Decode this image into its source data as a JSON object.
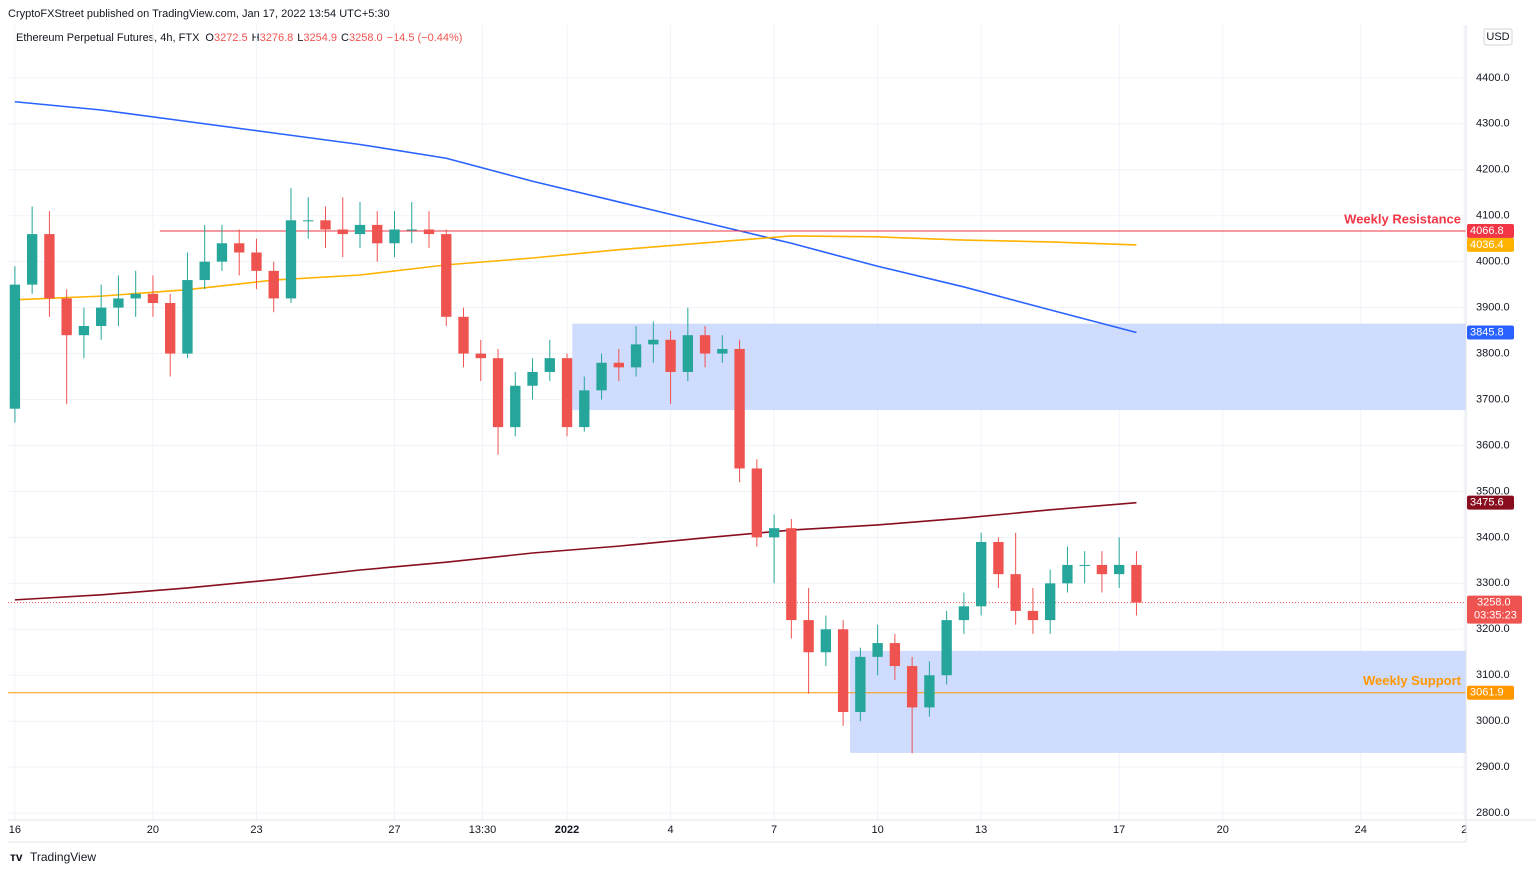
{
  "header": {
    "published": "CryptoFXStreet published on TradingView.com, Jan 17, 2022 13:54 UTC+5:30",
    "symbol": "Ethereum Perpetual Futures, 4h, FTX",
    "ohlc": [
      {
        "key": "O",
        "value": "3272.5"
      },
      {
        "key": "H",
        "value": "3276.8"
      },
      {
        "key": "L",
        "value": "3254.9"
      },
      {
        "key": "C",
        "value": "3258.0"
      }
    ],
    "change": "−14.5 (−0.44%)",
    "currency": "USD"
  },
  "footer": {
    "brand": "TradingView"
  },
  "chart_data": {
    "type": "candlestick",
    "categories": [
      null,
      null,
      null,
      null,
      null,
      null,
      null,
      null,
      null,
      null,
      null,
      null,
      null,
      null,
      null,
      null,
      null,
      null,
      null,
      null,
      null,
      null,
      null,
      null,
      null,
      null,
      null,
      null,
      null,
      null,
      null,
      null,
      null,
      null,
      null,
      null,
      null,
      null,
      null,
      null,
      null,
      null,
      null,
      null,
      null,
      null,
      null,
      null,
      null,
      null,
      null,
      null,
      null,
      null,
      null,
      null,
      null,
      null,
      null,
      null,
      null,
      null,
      null,
      null,
      null,
      null
    ],
    "open": [
      3680,
      3950,
      4060,
      3920,
      3840,
      3860,
      3900,
      3920,
      3930,
      3910,
      3800,
      3960,
      4000,
      4040,
      4020,
      3980,
      3920,
      4090,
      4090,
      4070,
      4060,
      4080,
      4040,
      4070,
      4070,
      4060,
      3880,
      3800,
      3790,
      3640,
      3730,
      3760,
      3790,
      3640,
      3720,
      3780,
      3770,
      3820,
      3830,
      3760,
      3840,
      3800,
      3810,
      3550,
      3400,
      3420,
      3220,
      3150,
      3200,
      3020,
      3140,
      3170,
      3120,
      3030,
      3100,
      3220,
      3250,
      3390,
      3320,
      3240,
      3220,
      3300,
      3340,
      3340,
      3320,
      3340
    ],
    "high": [
      3990,
      4120,
      4110,
      3940,
      3900,
      3950,
      3970,
      3980,
      3970,
      3930,
      4020,
      4080,
      4080,
      4070,
      4050,
      4000,
      4160,
      4140,
      4120,
      4140,
      4130,
      4110,
      4110,
      4130,
      4110,
      4070,
      3900,
      3830,
      3810,
      3760,
      3790,
      3830,
      3800,
      3750,
      3800,
      3810,
      3860,
      3870,
      3850,
      3900,
      3860,
      3840,
      3830,
      3570,
      3450,
      3440,
      3290,
      3230,
      3220,
      3160,
      3210,
      3190,
      3140,
      3130,
      3240,
      3280,
      3410,
      3400,
      3410,
      3290,
      3330,
      3380,
      3370,
      3370,
      3400,
      3370
    ],
    "low": [
      3650,
      3930,
      3880,
      3690,
      3790,
      3830,
      3860,
      3880,
      3880,
      3750,
      3790,
      3940,
      3980,
      3970,
      3940,
      3890,
      3910,
      4050,
      4030,
      4010,
      4030,
      4000,
      4010,
      4040,
      4030,
      3860,
      3770,
      3740,
      3580,
      3620,
      3700,
      3740,
      3620,
      3630,
      3700,
      3740,
      3750,
      3780,
      3690,
      3740,
      3770,
      3780,
      3520,
      3380,
      3300,
      3180,
      3060,
      3120,
      2990,
      3000,
      3100,
      3090,
      2930,
      3010,
      3080,
      3190,
      3230,
      3290,
      3210,
      3190,
      3190,
      3280,
      3300,
      3280,
      3290,
      3230
    ],
    "close": [
      3950,
      4060,
      3920,
      3840,
      3860,
      3900,
      3920,
      3930,
      3910,
      3800,
      3960,
      4000,
      4040,
      4020,
      3980,
      3920,
      4090,
      4090,
      4070,
      4060,
      4080,
      4040,
      4070,
      4070,
      4060,
      3880,
      3800,
      3790,
      3640,
      3730,
      3760,
      3790,
      3640,
      3720,
      3780,
      3770,
      3820,
      3830,
      3760,
      3840,
      3800,
      3810,
      3550,
      3400,
      3420,
      3220,
      3150,
      3200,
      3020,
      3140,
      3170,
      3120,
      3030,
      3100,
      3220,
      3250,
      3390,
      3320,
      3240,
      3220,
      3300,
      3340,
      3340,
      3320,
      3340,
      3258
    ],
    "up_color": "#26a69a",
    "down_color": "#ef5350",
    "series": [
      {
        "color": "#2962ff",
        "x": [
          0,
          5,
          10,
          15,
          20,
          25,
          30,
          35,
          40,
          45,
          50,
          55,
          60,
          65
        ],
        "values": [
          4348,
          4330,
          4305,
          4280,
          4255,
          4225,
          4175,
          4130,
          4085,
          4040,
          3990,
          3945,
          3895,
          3845.8
        ],
        "end_label": "3845.8"
      },
      {
        "color": "#ffb300",
        "x": [
          0,
          5,
          10,
          15,
          20,
          25,
          30,
          35,
          40,
          45,
          50,
          55,
          60,
          65
        ],
        "values": [
          3917,
          3925,
          3939,
          3960,
          3971,
          3993,
          4008,
          4026,
          4041,
          4056,
          4054,
          4047,
          4043,
          4036.4
        ],
        "end_label": "4036.4"
      },
      {
        "color": "#880e1f",
        "x": [
          0,
          5,
          10,
          15,
          20,
          25,
          30,
          35,
          40,
          45,
          50,
          55,
          60,
          65
        ],
        "values": [
          3264,
          3275,
          3290,
          3308,
          3329,
          3346,
          3366,
          3381,
          3399,
          3416,
          3427,
          3442,
          3460,
          3475.6
        ],
        "end_label": "3475.6"
      }
    ],
    "levels": [
      {
        "name": "Weekly Resistance",
        "value": 4066.8,
        "label": "4066.8",
        "color": "#f23645",
        "x_start": 8.4
      },
      {
        "name": "Weekly Support",
        "value": 3061.9,
        "label": "3061.9",
        "color": "#ff9800",
        "x_start": -0.4
      }
    ],
    "zones": [
      {
        "ylim": [
          3677,
          3865
        ],
        "x_start": 32.3
      },
      {
        "ylim": [
          2931,
          3153
        ],
        "x_start": 48.4
      }
    ],
    "last_price": {
      "value": 3258,
      "label": "3258.0",
      "countdown": "03:35:23",
      "color": "#ef5350"
    },
    "xlim": [
      -0.4,
      84.1
    ],
    "ylim": [
      2785,
      4515
    ],
    "xticks": [
      {
        "value": 0,
        "label": "16"
      },
      {
        "value": 8,
        "label": "20"
      },
      {
        "value": 14,
        "label": "23"
      },
      {
        "value": 22,
        "label": "27"
      },
      {
        "value": 27.1,
        "label": "13:30"
      },
      {
        "value": 32,
        "label": "2022"
      },
      {
        "value": 38,
        "label": "4"
      },
      {
        "value": 44,
        "label": "7"
      },
      {
        "value": 50,
        "label": "10"
      },
      {
        "value": 56,
        "label": "13"
      },
      {
        "value": 64,
        "label": "17"
      },
      {
        "value": 70,
        "label": "20"
      },
      {
        "value": 78,
        "label": "24"
      },
      {
        "value": 84,
        "label": "2"
      }
    ],
    "yticks": [
      {
        "value": 2800,
        "label": "2800.0"
      },
      {
        "value": 2900,
        "label": "2900.0"
      },
      {
        "value": 3000,
        "label": "3000.0"
      },
      {
        "value": 3100,
        "label": "3100.0"
      },
      {
        "value": 3200,
        "label": "3200.0"
      },
      {
        "value": 3300,
        "label": "3300.0"
      },
      {
        "value": 3400,
        "label": "3400.0"
      },
      {
        "value": 3500,
        "label": "3500.0"
      },
      {
        "value": 3600,
        "label": "3600.0"
      },
      {
        "value": 3700,
        "label": "3700.0"
      },
      {
        "value": 3800,
        "label": "3800.0"
      },
      {
        "value": 3900,
        "label": "3900.0"
      },
      {
        "value": 4000,
        "label": "4000.0"
      },
      {
        "value": 4100,
        "label": "4100.0"
      },
      {
        "value": 4200,
        "label": "4200.0"
      },
      {
        "value": 4300,
        "label": "4300.0"
      },
      {
        "value": 4400,
        "label": "4400.0"
      }
    ],
    "grid": true
  }
}
